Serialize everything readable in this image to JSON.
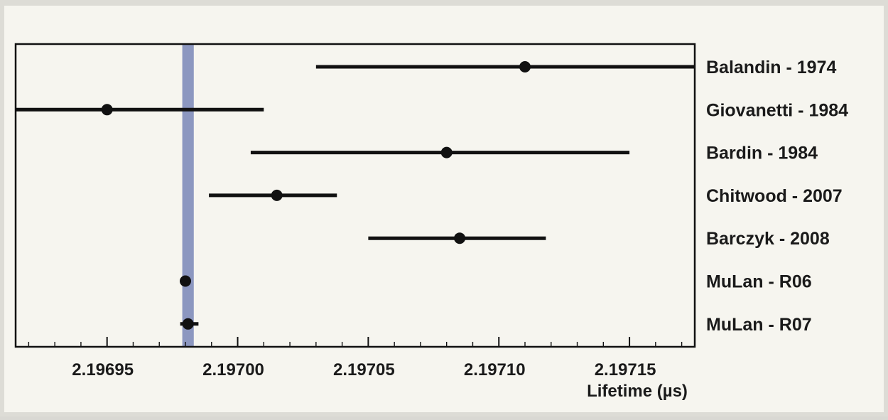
{
  "chart_data": {
    "type": "scatter",
    "xlabel": "Lifetime (µs)",
    "xlim": [
      2.196915,
      2.197175
    ],
    "xticks": [
      "2.19695",
      "2.19700",
      "2.19705",
      "2.19710",
      "2.19715"
    ],
    "xtick_values": [
      2.19695,
      2.197,
      2.19705,
      2.1971,
      2.19715
    ],
    "band": {
      "center": 2.196981,
      "half_width": 2.2e-06,
      "color": "#8c97c0"
    },
    "points": [
      {
        "label": "Balandin - 1974",
        "value": 2.19711,
        "low": 2.19703,
        "high": 2.197175
      },
      {
        "label": "Giovanetti - 1984",
        "value": 2.19695,
        "low": 2.196915,
        "high": 2.19701
      },
      {
        "label": "Bardin - 1984",
        "value": 2.19708,
        "low": 2.197005,
        "high": 2.19715
      },
      {
        "label": "Chitwood - 2007",
        "value": 2.197015,
        "low": 2.196989,
        "high": 2.197038
      },
      {
        "label": "Barczyk - 2008",
        "value": 2.197085,
        "low": 2.19705,
        "high": 2.197118
      },
      {
        "label": "MuLan - R06",
        "value": 2.19698,
        "low": 2.196979,
        "high": 2.196981
      },
      {
        "label": "MuLan - R07",
        "value": 2.196981,
        "low": 2.196978,
        "high": 2.196985
      }
    ],
    "colors": {
      "marker": "#111111",
      "frame": "#111111",
      "background": "#f6f5ef"
    }
  }
}
